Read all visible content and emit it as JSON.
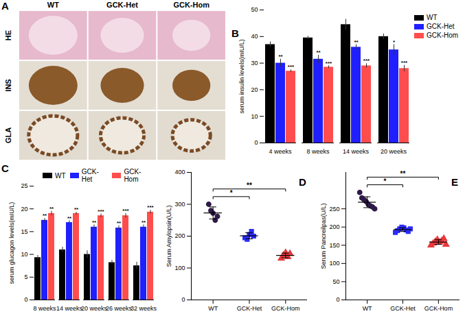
{
  "chart_data": [
    {
      "type": "image_grid",
      "panel": "A",
      "columns": [
        "WT",
        "GCK-Het",
        "GCK-Hom"
      ],
      "rows": [
        "HE",
        "INS",
        "GLA"
      ]
    },
    {
      "type": "bar",
      "panel": "B",
      "y_label": "serum insulin levels(mIU/L)",
      "categories": [
        "4 weeks",
        "8 weeks",
        "14 weeks",
        "20 weeks"
      ],
      "series": [
        {
          "name": "WT",
          "color": "#000000",
          "values": [
            37,
            39.5,
            44.5,
            40
          ],
          "errors": [
            1,
            0.6,
            2,
            1
          ]
        },
        {
          "name": "GCK-Het",
          "color": "#1f1fff",
          "values": [
            30,
            31.5,
            36,
            35
          ],
          "errors": [
            1.5,
            1.5,
            1,
            2
          ],
          "significance": [
            "**",
            "**",
            "**",
            "*"
          ]
        },
        {
          "name": "GCK-Hom",
          "color": "#ff4d4d",
          "values": [
            27,
            28.5,
            29,
            28
          ],
          "errors": [
            0.5,
            0.5,
            0.8,
            1.2
          ],
          "significance": [
            "***",
            "***",
            "***",
            "***"
          ]
        }
      ],
      "ylim": [
        0,
        50
      ],
      "yticks": [
        0,
        10,
        20,
        30,
        40,
        50
      ],
      "grid": false,
      "legend": "upper right"
    },
    {
      "type": "bar",
      "panel": "C",
      "y_label": "serum glucagon levels(mIU/L)",
      "categories": [
        "8 weeks",
        "14 weeks",
        "20 weeks",
        "26 weeks",
        "32 weeks"
      ],
      "series": [
        {
          "name": "WT",
          "color": "#000000",
          "values": [
            9.3,
            11,
            10,
            8.2,
            7.5
          ],
          "errors": [
            0.5,
            0.6,
            0.8,
            0.5,
            0.8
          ]
        },
        {
          "name": "GCK-Het",
          "color": "#1f1fff",
          "values": [
            17.5,
            17,
            16,
            15.8,
            16
          ],
          "errors": [
            0.4,
            0.4,
            0.5,
            0.5,
            0.5
          ],
          "significance": [
            "**",
            "**",
            "**",
            "**",
            "**"
          ]
        },
        {
          "name": "GCK-Hom",
          "color": "#ff4d4d",
          "values": [
            19,
            19,
            18.5,
            18.5,
            19.3
          ],
          "errors": [
            0.5,
            0.3,
            0.4,
            0.5,
            0.4
          ],
          "significance": [
            "**",
            "**",
            "***",
            "***",
            "***"
          ]
        }
      ],
      "ylim": [
        0,
        25
      ],
      "yticks": [
        0,
        5,
        10,
        15,
        20,
        25
      ],
      "grid": false,
      "legend": "upper right"
    },
    {
      "type": "scatter",
      "panel": "D",
      "y_label": "Serum Amylopsin(U/L)",
      "series": [
        {
          "name": "WT",
          "color": "#2e1a47",
          "marker": "circle",
          "values": [
            300,
            280,
            272,
            250,
            262
          ]
        },
        {
          "name": "GCK-Het",
          "color": "#2b2bff",
          "marker": "square",
          "values": [
            195,
            190,
            205,
            215,
            200
          ]
        },
        {
          "name": "GCK-Hom",
          "color": "#e8383d",
          "marker": "triangle",
          "values": [
            130,
            140,
            148,
            135,
            145
          ]
        }
      ],
      "comparisons": [
        {
          "from": "WT",
          "to": "GCK-Het",
          "label": "*"
        },
        {
          "from": "WT",
          "to": "GCK-Hom",
          "label": "**"
        }
      ],
      "ylim": [
        0,
        400
      ],
      "yticks": [
        0,
        100,
        200,
        300,
        400
      ],
      "grid": false
    },
    {
      "type": "scatter",
      "panel": "E",
      "y_label": "Serum Pancreilpas(U/L)",
      "series": [
        {
          "name": "WT",
          "color": "#2e1a47",
          "marker": "circle",
          "values": [
            295,
            280,
            275,
            270,
            262,
            258,
            255,
            250
          ]
        },
        {
          "name": "GCK-Het",
          "color": "#2b2bff",
          "marker": "square",
          "values": [
            185,
            190,
            195,
            200,
            198,
            192,
            188,
            195
          ]
        },
        {
          "name": "GCK-Hom",
          "color": "#e8383d",
          "marker": "triangle",
          "values": [
            150,
            155,
            160,
            165,
            158,
            162,
            168,
            152
          ]
        }
      ],
      "comparisons": [
        {
          "from": "WT",
          "to": "GCK-Het",
          "label": "*"
        },
        {
          "from": "WT",
          "to": "GCK-Hom",
          "label": "**"
        }
      ],
      "ylim": [
        0,
        350
      ],
      "yticks": [
        0,
        50,
        100,
        150,
        200,
        250
      ],
      "grid": false
    }
  ]
}
